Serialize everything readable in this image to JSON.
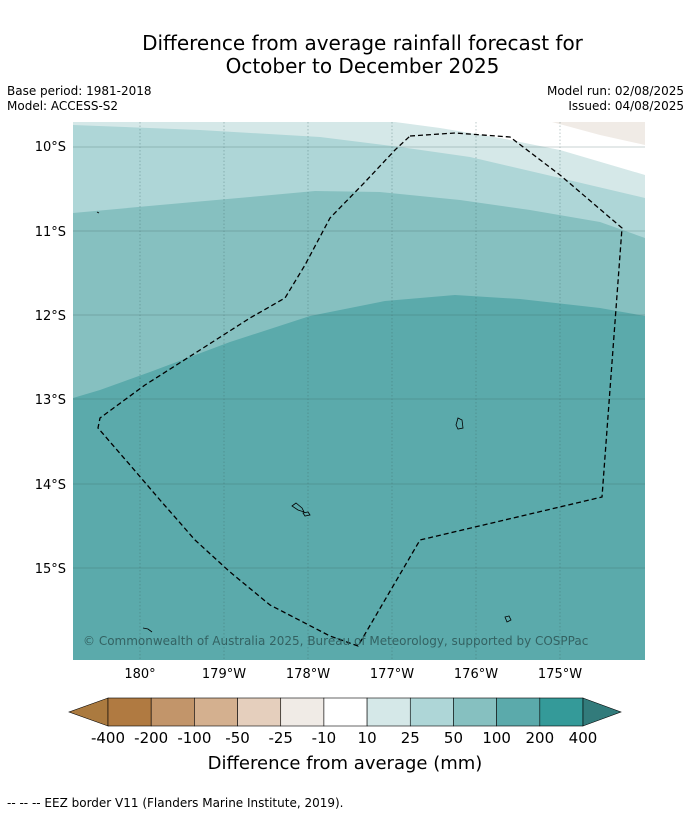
{
  "title": {
    "line1": "Difference from average rainfall forecast for",
    "line2": "October to December 2025"
  },
  "meta": {
    "base_period": "Base period: 1981-2018",
    "model": "Model: ACCESS-S2",
    "model_run": "Model run: 02/08/2025",
    "issued": "Issued: 04/08/2025"
  },
  "map": {
    "lat_labels": [
      "10°S",
      "11°S",
      "12°S",
      "13°S",
      "14°S",
      "15°S"
    ],
    "lon_labels": [
      "180°",
      "179°W",
      "178°W",
      "177°W",
      "176°W",
      "175°W"
    ],
    "copyright": "© Commonwealth of Australia 2025, Bureau of Meteorology, supported by COSPPac"
  },
  "colorbar": {
    "ticks": [
      "-400",
      "-200",
      "-100",
      "-50",
      "-25",
      "-10",
      "10",
      "25",
      "50",
      "100",
      "200",
      "400"
    ],
    "colors": [
      "#ab7a3f",
      "#b07a41",
      "#c2956a",
      "#d4b08f",
      "#e5cfbd",
      "#f0ebe6",
      "#ffffff",
      "#d5e8e8",
      "#aed6d7",
      "#86c0c0",
      "#5baaab",
      "#349a99",
      "#327b7b"
    ],
    "label": "Difference from average (mm)"
  },
  "footnote": "--  --  -- EEZ border V11 (Flanders Marine Institute, 2019)."
}
